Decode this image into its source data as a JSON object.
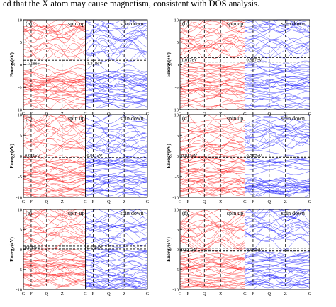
{
  "caption": "ed that the X atom may cause magnetism, consistent with DOS analysis.",
  "colors": {
    "spin_up": "#ff2020",
    "spin_down": "#2020ff",
    "axis": "#000000"
  },
  "chart_data": [
    {
      "type": "line",
      "panel": "(a)",
      "ylabel": "Energy(eV)",
      "ylim": [
        -10,
        10
      ],
      "yticks": [
        "10",
        "5",
        "0",
        "-5",
        "-10"
      ],
      "kpoints": [
        "G",
        "F",
        "Q",
        "Z",
        "G",
        "F",
        "Q",
        "Z",
        "G"
      ],
      "legend": [
        "spin up",
        "spin down"
      ],
      "fermi_level": 0,
      "gap_up": "1.318eV",
      "gap_down": "1.318eV",
      "gap_top": 1.0,
      "gap_bottom": -0.3
    },
    {
      "type": "line",
      "panel": "(b)",
      "ylabel": "Energy(eV)",
      "ylim": [
        -10,
        10
      ],
      "yticks": [
        "10",
        "5",
        "0",
        "-5",
        "-10"
      ],
      "kpoints": [
        "G",
        "F",
        "Q",
        "Z",
        "G",
        "F",
        "Q",
        "Z",
        "G"
      ],
      "legend": [
        "spin up",
        "spin down"
      ],
      "fermi_level": 0,
      "gap_up": "1.077eV",
      "gap_down": "0.957eV",
      "gap_top": 1.6,
      "gap_bottom": 0.6
    },
    {
      "type": "line",
      "panel": "(c)",
      "ylabel": "Energy(eV)",
      "ylim": [
        -10,
        10
      ],
      "yticks": [
        "10",
        "5",
        "0",
        "-5",
        "-10"
      ],
      "kpoints": [
        "G",
        "F",
        "Q",
        "Z",
        "G",
        "F",
        "Q",
        "Z",
        "G"
      ],
      "legend": [
        "spin up",
        "spin down"
      ],
      "fermi_level": 0,
      "gap_up": "0.911eV",
      "gap_down": "0.911eV",
      "gap_top": 0.5,
      "gap_bottom": -0.4
    },
    {
      "type": "line",
      "panel": "(d)",
      "ylabel": "Energy(eV)",
      "ylim": [
        -10,
        10
      ],
      "yticks": [
        "10",
        "5",
        "0",
        "-5",
        "-10"
      ],
      "kpoints": [
        "G",
        "F",
        "Q",
        "Z",
        "G",
        "F",
        "Q",
        "Z",
        "G"
      ],
      "legend": [
        "spin up",
        "spin down"
      ],
      "fermi_level": 0,
      "gap_up": "0.843eV",
      "gap_down": "0.757eV",
      "gap_top": 0.5,
      "gap_bottom": -0.3
    },
    {
      "type": "line",
      "panel": "(e)",
      "ylabel": "Energy(eV)",
      "ylim": [
        -10,
        10
      ],
      "yticks": [
        "10",
        "5",
        "0",
        "-5",
        "-10"
      ],
      "kpoints": [
        "G",
        "F",
        "Q",
        "Z",
        "G",
        "F",
        "Q",
        "Z",
        "G"
      ],
      "legend": [
        "spin up",
        "spin down"
      ],
      "fermi_level": 0,
      "gap_up": "0.647eV",
      "gap_down": "0.546eV",
      "gap_top": 0.8,
      "gap_bottom": 0.1
    },
    {
      "type": "line",
      "panel": "(f)",
      "ylabel": "Energy(eV)",
      "ylim": [
        -10,
        10
      ],
      "yticks": [
        "10",
        "5",
        "0",
        "-5",
        "-10"
      ],
      "kpoints": [
        "G",
        "F",
        "Q",
        "Z",
        "G",
        "F",
        "Q",
        "Z",
        "G"
      ],
      "legend": [
        "spin up",
        "spin down"
      ],
      "fermi_level": 0,
      "gap_up": "0.677eV",
      "gap_down": "0.677eV",
      "gap_top": 0.3,
      "gap_bottom": -0.4
    }
  ]
}
